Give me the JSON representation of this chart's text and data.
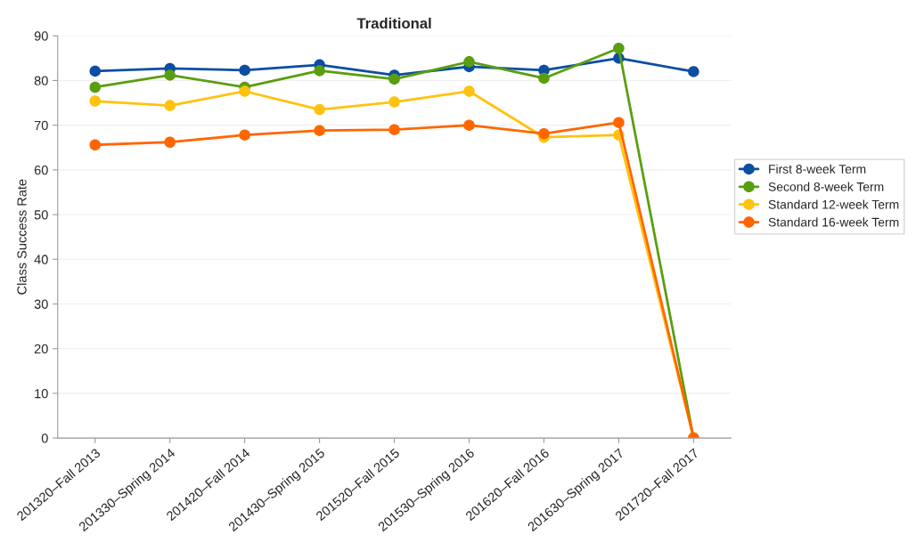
{
  "chart_data": {
    "type": "line",
    "title": "Traditional",
    "ylabel": "Class Success Rate",
    "categories": [
      "201320–Fall 2013",
      "201330–Spring 2014",
      "201420–Fall 2014",
      "201430–Spring 2015",
      "201520–Fall 2015",
      "201530–Spring 2016",
      "201620–Fall 2016",
      "201630–Spring 2017",
      "201720–Fall 2017"
    ],
    "series": [
      {
        "name": "First 8-week Term",
        "color": "#0b4ea2",
        "values": [
          82.1,
          82.7,
          82.3,
          83.5,
          81.2,
          83.1,
          82.3,
          85,
          82
        ]
      },
      {
        "name": "Second 8-week Term",
        "color": "#5a9e0f",
        "values": [
          78.5,
          81.2,
          78.5,
          82.2,
          80.3,
          84.2,
          80.5,
          87.2,
          0
        ]
      },
      {
        "name": "Standard 12-week Term",
        "color": "#ffc20e",
        "values": [
          75.4,
          74.4,
          77.6,
          73.5,
          75.2,
          77.6,
          67.3,
          67.8,
          0
        ]
      },
      {
        "name": "Standard 16-week Term",
        "color": "#ff6600",
        "values": [
          65.6,
          66.2,
          67.8,
          68.8,
          69,
          70,
          68.1,
          70.6,
          0
        ]
      }
    ],
    "ylim": [
      0,
      90
    ],
    "yticks": [
      0,
      10,
      20,
      30,
      40,
      50,
      60,
      70,
      80,
      90
    ],
    "grid": "y",
    "legend": "right",
    "marker": "circle",
    "line_style": "solid"
  }
}
